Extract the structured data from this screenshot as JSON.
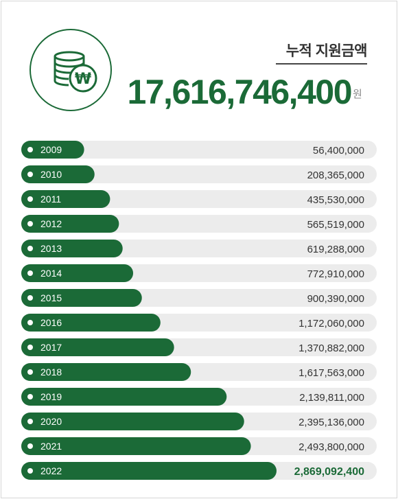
{
  "header": {
    "title": "누적 지원금액",
    "total": "17,616,746,400",
    "unit": "원"
  },
  "icon": "coins-won-icon",
  "colors": {
    "bar": "#1b6a37",
    "track": "#ececec",
    "highlight_text": "#1b6a37"
  },
  "chart_data": {
    "type": "bar",
    "orientation": "horizontal",
    "categories": [
      "2009",
      "2010",
      "2011",
      "2012",
      "2013",
      "2014",
      "2015",
      "2016",
      "2017",
      "2018",
      "2019",
      "2020",
      "2021",
      "2022"
    ],
    "values": [
      56400000,
      208365000,
      435530000,
      565519000,
      619288000,
      772910000,
      900390000,
      1172060000,
      1370882000,
      1617563000,
      2139811000,
      2395136000,
      2493800000,
      2869092400
    ],
    "value_labels": [
      "56,400,000",
      "208,365,000",
      "435,530,000",
      "565,519,000",
      "619,288,000",
      "772,910,000",
      "900,390,000",
      "1,172,060,000",
      "1,370,882,000",
      "1,617,563,000",
      "2,139,811,000",
      "2,395,136,000",
      "2,493,800,000",
      "2,869,092,400"
    ],
    "highlight_category": "2022",
    "title": "누적 지원금액",
    "xlabel": "",
    "ylabel": ""
  }
}
